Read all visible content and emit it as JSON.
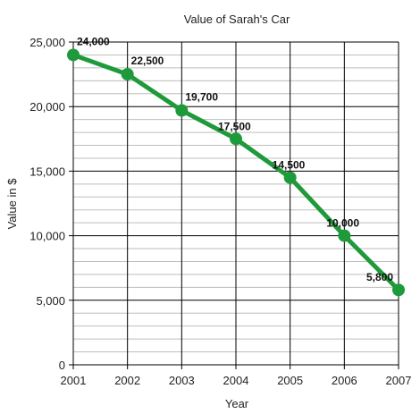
{
  "chart_data": {
    "type": "line",
    "title": "Value of Sarah's Car",
    "xlabel": "Year",
    "ylabel": "Value in $",
    "x": [
      "2001",
      "2002",
      "2003",
      "2004",
      "2005",
      "2006",
      "2007"
    ],
    "series": [
      {
        "values": [
          24000,
          22500,
          19700,
          17500,
          14500,
          10000,
          5800
        ]
      }
    ],
    "data_labels": [
      "24,000",
      "22,500",
      "19,700",
      "17,500",
      "14,500",
      "10,000",
      "5,800"
    ],
    "y_ticks": [
      "0",
      "5,000",
      "10,000",
      "15,000",
      "20,000",
      "25,000"
    ],
    "ylim": [
      0,
      25000
    ],
    "y_tick_values": [
      0,
      5000,
      10000,
      15000,
      20000,
      25000
    ],
    "minor_grid_step": 1000,
    "grid": true,
    "legend": "none",
    "line_color": "#1e9a3a",
    "grid_color": "#000000",
    "minor_grid_color": "#bdbdbd"
  }
}
